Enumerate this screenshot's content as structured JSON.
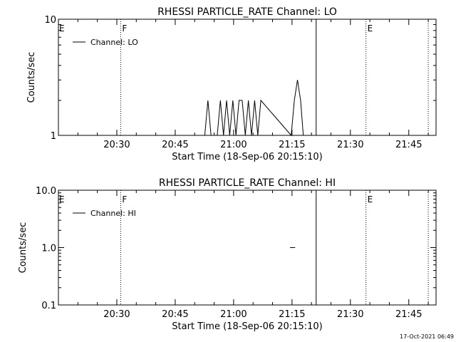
{
  "footer": {
    "timestamp": "17-Oct-2021 06:49"
  },
  "chart_data": [
    {
      "type": "line",
      "title": "RHESSI PARTICLE_RATE Channel: LO",
      "xlabel": "Start Time (18-Sep-06 20:15:10)",
      "ylabel": "Counts/sec",
      "yscale": "log",
      "xlim_minutes": [
        0,
        97
      ],
      "ylim": [
        1,
        10
      ],
      "xticks": [
        {
          "t": 15,
          "label": "20:30"
        },
        {
          "t": 30,
          "label": "20:45"
        },
        {
          "t": 45,
          "label": "21:00"
        },
        {
          "t": 60,
          "label": "21:15"
        },
        {
          "t": 75,
          "label": "21:30"
        },
        {
          "t": 90,
          "label": "21:45"
        }
      ],
      "yticks": [
        {
          "v": 1,
          "label": "1"
        },
        {
          "v": 10,
          "label": "10"
        }
      ],
      "legend": {
        "position": "top-left",
        "label": "Channel: LO"
      },
      "series": [
        {
          "name": "Channel: LO",
          "x": [
            37.6,
            38.4,
            39.2,
            40.0,
            40.8,
            41.6,
            42.4,
            43.2,
            44.0,
            44.8,
            45.6,
            46.4,
            47.2,
            48.0,
            48.8,
            49.6,
            50.4,
            51.2,
            52.0,
            59.8,
            60.6,
            61.4,
            62.2,
            62.9
          ],
          "y": [
            1,
            2,
            1,
            1,
            1,
            2,
            1,
            2,
            1,
            2,
            1,
            2,
            2,
            1,
            2,
            1,
            2,
            1,
            2,
            1,
            2,
            3,
            2,
            1
          ]
        }
      ],
      "vlines": [
        {
          "t": 16.0,
          "style": "dotted",
          "flag": "F"
        },
        {
          "t": 66.2,
          "style": "solid",
          "flag": ""
        },
        {
          "t": 79.0,
          "style": "dotted",
          "flag": "E"
        },
        {
          "t": 95.0,
          "style": "dotted",
          "flag": ""
        }
      ],
      "corner_flag": "E"
    },
    {
      "type": "line",
      "title": "RHESSI PARTICLE_RATE Channel: HI",
      "xlabel": "Start Time (18-Sep-06 20:15:10)",
      "ylabel": "Counts/sec",
      "yscale": "log",
      "xlim_minutes": [
        0,
        97
      ],
      "ylim": [
        0.1,
        10
      ],
      "xticks": [
        {
          "t": 15,
          "label": "20:30"
        },
        {
          "t": 30,
          "label": "20:45"
        },
        {
          "t": 45,
          "label": "21:00"
        },
        {
          "t": 60,
          "label": "21:15"
        },
        {
          "t": 75,
          "label": "21:30"
        },
        {
          "t": 90,
          "label": "21:45"
        }
      ],
      "yticks": [
        {
          "v": 0.1,
          "label": "0.1"
        },
        {
          "v": 1,
          "label": "1.0"
        },
        {
          "v": 10,
          "label": "10.0"
        }
      ],
      "legend": {
        "position": "top-left",
        "label": "Channel: HI"
      },
      "series": [
        {
          "name": "Channel: HI",
          "x": [
            59.5,
            60.8
          ],
          "y": [
            1,
            1
          ]
        }
      ],
      "vlines": [
        {
          "t": 16.0,
          "style": "dotted",
          "flag": "F"
        },
        {
          "t": 66.2,
          "style": "solid",
          "flag": ""
        },
        {
          "t": 79.0,
          "style": "dotted",
          "flag": "E"
        },
        {
          "t": 95.0,
          "style": "dotted",
          "flag": ""
        }
      ],
      "corner_flag": "E"
    }
  ]
}
